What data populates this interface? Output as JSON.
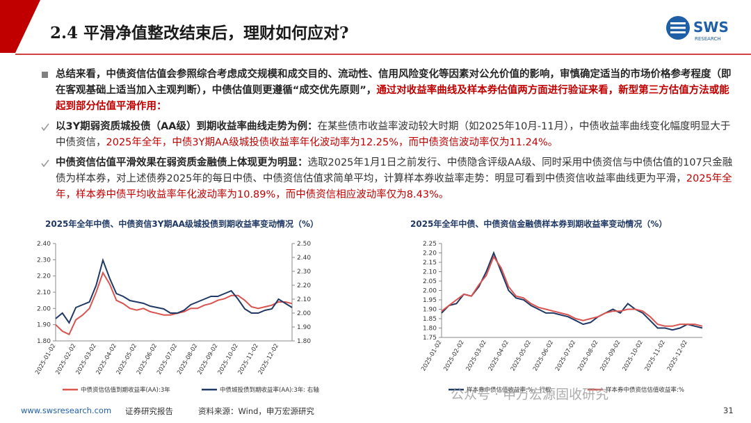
{
  "header": {
    "title": "2.4 平滑净值整改结束后，理财如何应对?",
    "logo": "SWS",
    "logo_sub": "RESEARCH"
  },
  "bullets": [
    {
      "parts": [
        {
          "text": "总结来看，中债资信估值会参照综合考虑成交规模和成交目的、流动性、信用风险变化等因素对公允价值的影响，审慎确定适当的市场价格参考程度（即在客观基础上适当加入主观判断），中债估值则更遵循“成交优先原则”，",
          "color": "#262626",
          "bold": true
        },
        {
          "text": "通过对收益率曲线及样本券估值两方面进行验证来看，新型第三方估值方法或能起到部分估值平滑作用：",
          "color": "#c00000",
          "bold": true
        }
      ]
    },
    {
      "parts": [
        {
          "text": "以3Y期弱资质城投债（AA级）到期收益率曲线走势为例：",
          "color": "#262626",
          "bold": true
        },
        {
          "text": "在某些债市收益率波动较大时期（如2025年10月-11月），中债收益率曲线变化幅度明显大于中债资信，",
          "color": "#333333",
          "bold": false
        },
        {
          "text": "2025年全年，中债3Y期AA级城投债收益率年化波动率为12.25%，而中债资信波动率仅为11.24%。",
          "color": "#c00000",
          "bold": false
        }
      ]
    },
    {
      "parts": [
        {
          "text": "中债资信估值平滑效果在弱资质金融债上体现更为明显：",
          "color": "#262626",
          "bold": true
        },
        {
          "text": "选取2025年1月1日之前发行、中债隐含评级AA级、同时采用中债资信与中债估值的107只金融债为样本券，对上述债券2025年的每日中债、中债资信估值求简单平均，计算样本券收益率走势：明显可看到中债资信收益率曲线更为平滑，",
          "color": "#333333",
          "bold": false
        },
        {
          "text": "2025年全年，样本券中债平均收益率年化波动率为10.89%，而中债资信相应波动率仅为8.43%。",
          "color": "#c00000",
          "bold": false
        }
      ]
    }
  ],
  "chart_data": [
    {
      "type": "line",
      "title": "2025年全年中债、中债资信3Y期AA级城投债到期收益率变动情况（%）",
      "categories": [
        "2025-01-02",
        null,
        null,
        "2025-02-02",
        null,
        null,
        "2025-03-02",
        null,
        null,
        "2025-04-02",
        null,
        null,
        "2025-05-02",
        null,
        null,
        "2025-06-02",
        null,
        null,
        "2025-07-02",
        null,
        null,
        "2025-08-02",
        null,
        null,
        "2025-09-02",
        null,
        null,
        "2025-10-02",
        null,
        null,
        "2025-11-02",
        null,
        null,
        "2025-12-02",
        null,
        null
      ],
      "series": [
        {
          "name": "中债资信估值到期收益率(AA):3年",
          "color": "#d9534f",
          "axis": "y",
          "values": [
            1.9,
            1.86,
            1.84,
            1.93,
            1.96,
            2.0,
            2.1,
            2.22,
            2.15,
            2.05,
            2.03,
            2.0,
            1.99,
            2.0,
            1.98,
            1.97,
            1.96,
            1.96,
            1.97,
            1.98,
            2.0,
            2.0,
            2.02,
            2.03,
            2.05,
            2.06,
            2.08,
            2.08,
            2.05,
            2.01,
            2.0,
            2.01,
            2.02,
            2.04,
            2.04,
            2.03
          ]
        },
        {
          "name": "中债城投债到期收益率(AA):3年: 右轴",
          "color": "#1f3864",
          "axis": "y2",
          "values": [
            1.96,
            2.0,
            1.93,
            2.04,
            2.06,
            2.08,
            2.2,
            2.38,
            2.25,
            2.14,
            2.12,
            2.09,
            2.08,
            2.07,
            2.05,
            2.04,
            2.03,
            2.0,
            2.0,
            2.02,
            2.06,
            2.08,
            2.1,
            2.12,
            2.12,
            2.14,
            2.16,
            2.1,
            2.03,
            2.0,
            2.0,
            2.02,
            2.03,
            2.1,
            2.07,
            2.04
          ]
        }
      ],
      "ylim": [
        1.8,
        2.4
      ],
      "yticks": [
        {
          "value": 1.8,
          "label": "1.80"
        },
        {
          "value": 1.9,
          "label": "1.90"
        },
        {
          "value": 2.0,
          "label": "2.00"
        },
        {
          "value": 2.1,
          "label": "2.10"
        },
        {
          "value": 2.2,
          "label": "2.20"
        },
        {
          "value": 2.3,
          "label": "2.30"
        },
        {
          "value": 2.4,
          "label": "2.40"
        }
      ],
      "y2lim": [
        1.8,
        2.5
      ],
      "y2ticks": [
        {
          "value": 1.8,
          "label": "1.80"
        },
        {
          "value": 1.9,
          "label": "1.90"
        },
        {
          "value": 2.0,
          "label": "2.00"
        },
        {
          "value": 2.1,
          "label": "2.10"
        },
        {
          "value": 2.2,
          "label": "2.20"
        },
        {
          "value": 2.3,
          "label": "2.30"
        },
        {
          "value": 2.4,
          "label": "2.40"
        },
        {
          "value": 2.5,
          "label": "2.50"
        }
      ]
    },
    {
      "type": "line",
      "title": "2025年全年中债、中债资信金融债样本券到期收益率变动情况（%）",
      "categories": [
        "2025-01-02",
        null,
        null,
        "2025-02-02",
        null,
        null,
        "2025-03-02",
        null,
        null,
        "2025-04-02",
        null,
        null,
        "2025-05-02",
        null,
        null,
        "2025-06-02",
        null,
        null,
        "2025-07-02",
        null,
        null,
        "2025-08-02",
        null,
        null,
        "2025-09-02",
        null,
        null,
        "2025-10-02",
        null,
        null,
        "2025-11-02",
        null,
        null,
        "2025-12-02",
        null,
        null
      ],
      "series": [
        {
          "name": "样本券中债估值收益率:%，行权",
          "color": "#1f3864",
          "axis": "y",
          "values": [
            1.88,
            1.92,
            1.93,
            1.98,
            1.97,
            2.02,
            2.1,
            2.2,
            2.1,
            2.0,
            1.96,
            1.95,
            1.92,
            1.9,
            1.88,
            1.88,
            1.87,
            1.86,
            1.84,
            1.82,
            1.83,
            1.86,
            1.88,
            1.9,
            1.88,
            1.93,
            1.9,
            1.88,
            1.84,
            1.8,
            1.8,
            1.79,
            1.8,
            1.82,
            1.81,
            1.8
          ]
        },
        {
          "name": "样本券中债资信估值收益率:%",
          "color": "#d9534f",
          "axis": "y",
          "values": [
            1.89,
            1.92,
            1.95,
            1.98,
            1.97,
            2.03,
            2.08,
            2.18,
            2.12,
            2.02,
            1.97,
            1.96,
            1.93,
            1.91,
            1.9,
            1.89,
            1.88,
            1.87,
            1.85,
            1.84,
            1.85,
            1.86,
            1.88,
            1.89,
            1.89,
            1.9,
            1.9,
            1.89,
            1.86,
            1.82,
            1.81,
            1.81,
            1.82,
            1.82,
            1.82,
            1.81
          ]
        }
      ],
      "ylim": [
        1.75,
        2.25
      ],
      "yticks": [
        1.75,
        {
          "value": 1.8,
          "label": "1.80"
        },
        1.85,
        {
          "value": 1.9,
          "label": "1.90"
        },
        1.95,
        {
          "value": 2.0,
          "label": "2.00"
        },
        2.05,
        {
          "value": 2.1,
          "label": "2.10"
        },
        2.15,
        {
          "value": 2.2,
          "label": "2.20"
        },
        2.25
      ]
    }
  ],
  "footer": {
    "website": "www.swsresearch.com",
    "doc_type": "证券研究报告",
    "source": "资料来源：Wind，申万宏源研究",
    "page": "31"
  },
  "watermark": "公众号 · 申万宏源固收研究"
}
